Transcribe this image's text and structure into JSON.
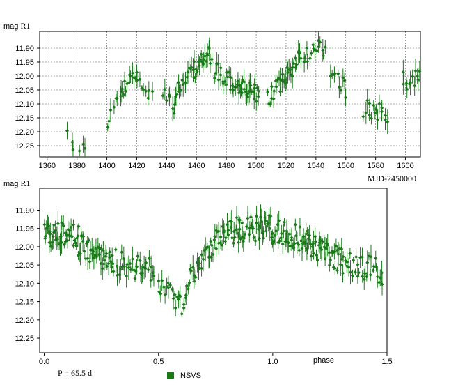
{
  "chart_data": [
    {
      "type": "scatter",
      "ylabel_unit": "mag",
      "ylabel": "R1",
      "xlabel": "MJD-2450000",
      "xlim": [
        1355,
        1610
      ],
      "ylim": [
        12.29,
        11.84
      ],
      "y_inverted": true,
      "grid": true,
      "xticks": [
        1360,
        1380,
        1400,
        1420,
        1440,
        1460,
        1480,
        1500,
        1520,
        1540,
        1560,
        1580,
        1600
      ],
      "yticks": [
        "11.90",
        "11.95",
        "12.00",
        "12.05",
        "12.10",
        "12.15",
        "12.20",
        "12.25"
      ],
      "segments": [
        {
          "x0": 1373,
          "x1": 1386,
          "y0": 12.21,
          "y1": 12.28,
          "n": 6
        },
        {
          "x0": 1400,
          "x1": 1410,
          "y0": 12.16,
          "y1": 12.06,
          "n": 8
        },
        {
          "x0": 1410,
          "x1": 1420,
          "y0": 12.06,
          "y1": 11.99,
          "n": 12
        },
        {
          "x0": 1420,
          "x1": 1430,
          "y0": 12.03,
          "y1": 12.05,
          "n": 8
        },
        {
          "x0": 1438,
          "x1": 1446,
          "y0": 12.04,
          "y1": 12.12,
          "n": 8
        },
        {
          "x0": 1446,
          "x1": 1458,
          "y0": 12.06,
          "y1": 11.99,
          "n": 14
        },
        {
          "x0": 1458,
          "x1": 1470,
          "y0": 11.98,
          "y1": 11.92,
          "n": 20
        },
        {
          "x0": 1472,
          "x1": 1488,
          "y0": 11.98,
          "y1": 12.04,
          "n": 22
        },
        {
          "x0": 1488,
          "x1": 1502,
          "y0": 12.04,
          "y1": 12.07,
          "n": 24
        },
        {
          "x0": 1508,
          "x1": 1520,
          "y0": 12.08,
          "y1": 12.01,
          "n": 18
        },
        {
          "x0": 1520,
          "x1": 1530,
          "y0": 12.0,
          "y1": 11.92,
          "n": 16
        },
        {
          "x0": 1532,
          "x1": 1546,
          "y0": 11.92,
          "y1": 11.9,
          "n": 16
        },
        {
          "x0": 1550,
          "x1": 1560,
          "y0": 11.98,
          "y1": 12.05,
          "n": 10
        },
        {
          "x0": 1572,
          "x1": 1588,
          "y0": 12.12,
          "y1": 12.13,
          "n": 16
        },
        {
          "x0": 1598,
          "x1": 1610,
          "y0": 12.02,
          "y1": 12.0,
          "n": 12
        }
      ]
    },
    {
      "type": "scatter",
      "ylabel_unit": "mag",
      "ylabel": "R1",
      "xlabel": "phase",
      "xlim": [
        -0.02,
        1.5
      ],
      "ylim": [
        12.29,
        11.84
      ],
      "y_inverted": true,
      "grid": false,
      "xticks": [
        "0.0",
        "0.5",
        "1.0",
        "1.5"
      ],
      "yticks": [
        "11.90",
        "11.95",
        "12.00",
        "12.05",
        "12.10",
        "12.15",
        "12.20",
        "12.25"
      ],
      "period_label": "P = 65.5 d",
      "legend": "NSVS",
      "segments": [
        {
          "x0": 0.0,
          "x1": 0.15,
          "y0": 11.97,
          "y1": 11.97,
          "n": 45
        },
        {
          "x0": 0.15,
          "x1": 0.3,
          "y0": 12.0,
          "y1": 12.04,
          "n": 40
        },
        {
          "x0": 0.3,
          "x1": 0.48,
          "y0": 12.04,
          "y1": 12.07,
          "n": 35
        },
        {
          "x0": 0.5,
          "x1": 0.62,
          "y0": 12.09,
          "y1": 12.17,
          "n": 22
        },
        {
          "x0": 0.62,
          "x1": 0.72,
          "y0": 12.1,
          "y1": 12.0,
          "n": 22
        },
        {
          "x0": 0.72,
          "x1": 0.85,
          "y0": 12.0,
          "y1": 11.95,
          "n": 35
        },
        {
          "x0": 0.85,
          "x1": 1.0,
          "y0": 11.96,
          "y1": 11.94,
          "n": 40
        },
        {
          "x0": 1.0,
          "x1": 1.15,
          "y0": 11.96,
          "y1": 11.98,
          "n": 40
        },
        {
          "x0": 1.15,
          "x1": 1.3,
          "y0": 11.99,
          "y1": 12.04,
          "n": 40
        },
        {
          "x0": 1.3,
          "x1": 1.48,
          "y0": 12.04,
          "y1": 12.07,
          "n": 35
        }
      ]
    }
  ],
  "colors": {
    "points": "#1a7a1a",
    "legend": "#1a7a1a",
    "grid": "#555555",
    "frame": "#000000"
  }
}
